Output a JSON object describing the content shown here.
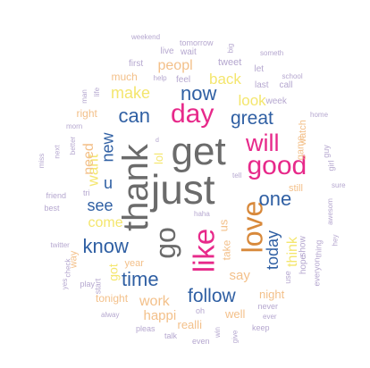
{
  "colors": {
    "gray": "#6b6b6b",
    "pink": "#e7298a",
    "blue": "#2f5fa3",
    "orange": "#d8893b",
    "yellow": "#f4e66e",
    "peach": "#f3c08a",
    "lavender": "#b5a7cf",
    "lightgray": "#b8b8b8"
  },
  "words": [
    {
      "text": "get",
      "color": "gray",
      "size": 44,
      "weight": "normal",
      "rotate": 0
    },
    {
      "text": "just",
      "color": "gray",
      "size": 46,
      "weight": "normal",
      "rotate": 0
    },
    {
      "text": "thank",
      "color": "gray",
      "size": 40,
      "weight": "normal",
      "rotate": -90
    },
    {
      "text": "go",
      "color": "gray",
      "size": 32,
      "weight": "normal",
      "rotate": -90
    },
    {
      "text": "day",
      "color": "pink",
      "size": 30,
      "weight": "normal",
      "rotate": 0
    },
    {
      "text": "good",
      "color": "pink",
      "size": 30,
      "weight": "normal",
      "rotate": 0
    },
    {
      "text": "will",
      "color": "pink",
      "size": 27,
      "weight": "normal",
      "rotate": 0
    },
    {
      "text": "like",
      "color": "pink",
      "size": 33,
      "weight": "normal",
      "rotate": -90
    },
    {
      "text": "love",
      "color": "orange",
      "size": 32,
      "weight": "normal",
      "rotate": -90
    },
    {
      "text": "now",
      "color": "blue",
      "size": 22,
      "weight": "normal",
      "rotate": 0
    },
    {
      "text": "can",
      "color": "blue",
      "size": 22,
      "weight": "normal",
      "rotate": 0
    },
    {
      "text": "great",
      "color": "blue",
      "size": 21,
      "weight": "normal",
      "rotate": 0
    },
    {
      "text": "one",
      "color": "blue",
      "size": 22,
      "weight": "normal",
      "rotate": 0
    },
    {
      "text": "see",
      "color": "blue",
      "size": 18,
      "weight": "normal",
      "rotate": 0
    },
    {
      "text": "u",
      "color": "blue",
      "size": 18,
      "weight": "normal",
      "rotate": 0
    },
    {
      "text": "know",
      "color": "blue",
      "size": 22,
      "weight": "normal",
      "rotate": 0
    },
    {
      "text": "time",
      "color": "blue",
      "size": 22,
      "weight": "normal",
      "rotate": 0
    },
    {
      "text": "follow",
      "color": "blue",
      "size": 21,
      "weight": "normal",
      "rotate": 0
    },
    {
      "text": "today",
      "color": "blue",
      "size": 18,
      "weight": "normal",
      "rotate": -90
    },
    {
      "text": "new",
      "color": "blue",
      "size": 18,
      "weight": "normal",
      "rotate": -90
    },
    {
      "text": "peopl",
      "color": "peach",
      "size": 16,
      "weight": "normal",
      "rotate": 0
    },
    {
      "text": "back",
      "color": "yellow",
      "size": 17,
      "weight": "normal",
      "rotate": 0
    },
    {
      "text": "make",
      "color": "yellow",
      "size": 18,
      "weight": "normal",
      "rotate": 0
    },
    {
      "text": "look",
      "color": "yellow",
      "size": 17,
      "weight": "normal",
      "rotate": 0
    },
    {
      "text": "want",
      "color": "yellow",
      "size": 17,
      "weight": "normal",
      "rotate": -90
    },
    {
      "text": "need",
      "color": "peach",
      "size": 16,
      "weight": "normal",
      "rotate": -90
    },
    {
      "text": "come",
      "color": "yellow",
      "size": 16,
      "weight": "normal",
      "rotate": 0
    },
    {
      "text": "think",
      "color": "yellow",
      "size": 16,
      "weight": "normal",
      "rotate": -90
    },
    {
      "text": "work",
      "color": "peach",
      "size": 16,
      "weight": "normal",
      "rotate": 0
    },
    {
      "text": "say",
      "color": "peach",
      "size": 15,
      "weight": "normal",
      "rotate": 0
    },
    {
      "text": "happi",
      "color": "peach",
      "size": 15,
      "weight": "normal",
      "rotate": 0
    },
    {
      "text": "night",
      "color": "peach",
      "size": 13,
      "weight": "normal",
      "rotate": 0
    },
    {
      "text": "got",
      "color": "yellow",
      "size": 14,
      "weight": "normal",
      "rotate": -90
    },
    {
      "text": "lol",
      "color": "yellow",
      "size": 13,
      "weight": "normal",
      "rotate": -90
    },
    {
      "text": "well",
      "color": "peach",
      "size": 13,
      "weight": "normal",
      "rotate": 0
    },
    {
      "text": "realli",
      "color": "peach",
      "size": 13,
      "weight": "normal",
      "rotate": 0
    },
    {
      "text": "tonight",
      "color": "peach",
      "size": 12,
      "weight": "normal",
      "rotate": 0
    },
    {
      "text": "us",
      "color": "peach",
      "size": 13,
      "weight": "normal",
      "rotate": -90
    },
    {
      "text": "take",
      "color": "peach",
      "size": 12,
      "weight": "normal",
      "rotate": -90
    },
    {
      "text": "much",
      "color": "peach",
      "size": 12,
      "weight": "normal",
      "rotate": 0
    },
    {
      "text": "right",
      "color": "peach",
      "size": 12,
      "weight": "normal",
      "rotate": 0
    },
    {
      "text": "watch",
      "color": "peach",
      "size": 11,
      "weight": "normal",
      "rotate": -90
    },
    {
      "text": "game",
      "color": "peach",
      "size": 11,
      "weight": "normal",
      "rotate": -90
    },
    {
      "text": "still",
      "color": "peach",
      "size": 11,
      "weight": "normal",
      "rotate": 0
    },
    {
      "text": "hope",
      "color": "lavender",
      "size": 10,
      "weight": "normal",
      "rotate": -90
    },
    {
      "text": "show",
      "color": "lavender",
      "size": 10,
      "weight": "normal",
      "rotate": -90
    },
    {
      "text": "year",
      "color": "peach",
      "size": 11,
      "weight": "normal",
      "rotate": 0
    },
    {
      "text": "way",
      "color": "peach",
      "size": 11,
      "weight": "normal",
      "rotate": -90
    },
    {
      "text": "feel",
      "color": "lavender",
      "size": 10,
      "weight": "normal",
      "rotate": 0
    },
    {
      "text": "tweet",
      "color": "lavender",
      "size": 11,
      "weight": "normal",
      "rotate": 0
    },
    {
      "text": "last",
      "color": "lavender",
      "size": 10,
      "weight": "normal",
      "rotate": 0
    },
    {
      "text": "week",
      "color": "lavender",
      "size": 10,
      "weight": "normal",
      "rotate": 0
    },
    {
      "text": "let",
      "color": "lavender",
      "size": 10,
      "weight": "normal",
      "rotate": 0
    },
    {
      "text": "call",
      "color": "lavender",
      "size": 10,
      "weight": "normal",
      "rotate": 0
    },
    {
      "text": "first",
      "color": "lavender",
      "size": 10,
      "weight": "normal",
      "rotate": 0
    },
    {
      "text": "live",
      "color": "lavender",
      "size": 10,
      "weight": "normal",
      "rotate": 0
    },
    {
      "text": "wait",
      "color": "lavender",
      "size": 10,
      "weight": "normal",
      "rotate": 0
    },
    {
      "text": "tomorrow",
      "color": "lavender",
      "size": 9,
      "weight": "normal",
      "rotate": 0
    },
    {
      "text": "weekend",
      "color": "lavender",
      "size": 8,
      "weight": "normal",
      "rotate": 0
    },
    {
      "text": "big",
      "color": "lavender",
      "size": 8,
      "weight": "normal",
      "rotate": -90
    },
    {
      "text": "someth",
      "color": "lavender",
      "size": 8,
      "weight": "normal",
      "rotate": 0
    },
    {
      "text": "school",
      "color": "lavender",
      "size": 8,
      "weight": "normal",
      "rotate": 0
    },
    {
      "text": "home",
      "color": "lavender",
      "size": 8,
      "weight": "normal",
      "rotate": 0
    },
    {
      "text": "guy",
      "color": "lavender",
      "size": 9,
      "weight": "normal",
      "rotate": -90
    },
    {
      "text": "girl",
      "color": "lavender",
      "size": 9,
      "weight": "normal",
      "rotate": -90
    },
    {
      "text": "sure",
      "color": "lavender",
      "size": 8,
      "weight": "normal",
      "rotate": 0
    },
    {
      "text": "awesom",
      "color": "lavender",
      "size": 8,
      "weight": "normal",
      "rotate": -90
    },
    {
      "text": "hey",
      "color": "lavender",
      "size": 8,
      "weight": "normal",
      "rotate": -90
    },
    {
      "text": "everyon",
      "color": "lavender",
      "size": 9,
      "weight": "normal",
      "rotate": -90
    },
    {
      "text": "thing",
      "color": "lavender",
      "size": 9,
      "weight": "normal",
      "rotate": -90
    },
    {
      "text": "use",
      "color": "lavender",
      "size": 9,
      "weight": "normal",
      "rotate": -90
    },
    {
      "text": "never",
      "color": "lavender",
      "size": 9,
      "weight": "normal",
      "rotate": 0
    },
    {
      "text": "ever",
      "color": "lavender",
      "size": 8,
      "weight": "normal",
      "rotate": 0
    },
    {
      "text": "keep",
      "color": "lavender",
      "size": 9,
      "weight": "normal",
      "rotate": 0
    },
    {
      "text": "give",
      "color": "lavender",
      "size": 8,
      "weight": "normal",
      "rotate": -90
    },
    {
      "text": "even",
      "color": "lavender",
      "size": 9,
      "weight": "normal",
      "rotate": 0
    },
    {
      "text": "oh",
      "color": "lavender",
      "size": 9,
      "weight": "normal",
      "rotate": 0
    },
    {
      "text": "win",
      "color": "lavender",
      "size": 8,
      "weight": "normal",
      "rotate": -90
    },
    {
      "text": "talk",
      "color": "lavender",
      "size": 9,
      "weight": "normal",
      "rotate": 0
    },
    {
      "text": "pleas",
      "color": "lavender",
      "size": 9,
      "weight": "normal",
      "rotate": 0
    },
    {
      "text": "alway",
      "color": "lavender",
      "size": 8,
      "weight": "normal",
      "rotate": 0
    },
    {
      "text": "play",
      "color": "lavender",
      "size": 9,
      "weight": "normal",
      "rotate": 0
    },
    {
      "text": "start",
      "color": "lavender",
      "size": 9,
      "weight": "normal",
      "rotate": -90
    },
    {
      "text": "yes",
      "color": "lavender",
      "size": 8,
      "weight": "normal",
      "rotate": -90
    },
    {
      "text": "check",
      "color": "lavender",
      "size": 8,
      "weight": "normal",
      "rotate": -90
    },
    {
      "text": "twitter",
      "color": "lavender",
      "size": 8,
      "weight": "normal",
      "rotate": 0
    },
    {
      "text": "best",
      "color": "lavender",
      "size": 9,
      "weight": "normal",
      "rotate": 0
    },
    {
      "text": "friend",
      "color": "lavender",
      "size": 9,
      "weight": "normal",
      "rotate": 0
    },
    {
      "text": "tri",
      "color": "lavender",
      "size": 9,
      "weight": "normal",
      "rotate": 0
    },
    {
      "text": "miss",
      "color": "lavender",
      "size": 8,
      "weight": "normal",
      "rotate": -90
    },
    {
      "text": "next",
      "color": "lavender",
      "size": 8,
      "weight": "normal",
      "rotate": -90
    },
    {
      "text": "better",
      "color": "lavender",
      "size": 8,
      "weight": "normal",
      "rotate": -90
    },
    {
      "text": "morn",
      "color": "lavender",
      "size": 8,
      "weight": "normal",
      "rotate": 0
    },
    {
      "text": "life",
      "color": "lavender",
      "size": 8,
      "weight": "normal",
      "rotate": -90
    },
    {
      "text": "man",
      "color": "lavender",
      "size": 8,
      "weight": "normal",
      "rotate": -90
    },
    {
      "text": "help",
      "color": "lavender",
      "size": 8,
      "weight": "normal",
      "rotate": 0
    },
    {
      "text": "haha",
      "color": "lavender",
      "size": 8,
      "weight": "normal",
      "rotate": 0
    },
    {
      "text": "tell",
      "color": "lavender",
      "size": 8,
      "weight": "normal",
      "rotate": 0
    },
    {
      "text": "d",
      "color": "lavender",
      "size": 7,
      "weight": "normal",
      "rotate": 0
    }
  ]
}
